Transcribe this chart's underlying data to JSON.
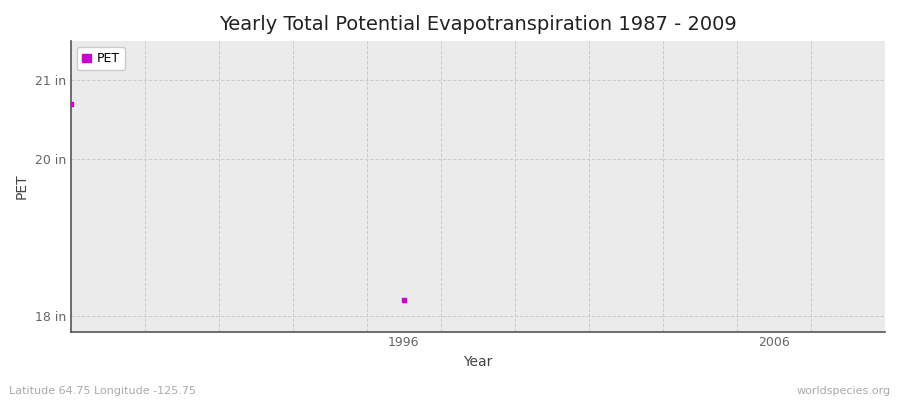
{
  "title": "Yearly Total Potential Evapotranspiration 1987 - 2009",
  "xlabel": "Year",
  "ylabel": "PET",
  "xlim": [
    1987,
    2009
  ],
  "ylim": [
    17.8,
    21.5
  ],
  "yticks": [
    18,
    20,
    21
  ],
  "ytick_labels": [
    "18 in",
    "20 in",
    "21 in"
  ],
  "xticks": [
    1996,
    2006
  ],
  "data_x": [
    1987,
    1996
  ],
  "data_y": [
    20.7,
    18.2
  ],
  "point_color": "#cc00cc",
  "point_size": 8,
  "legend_label": "PET",
  "fig_bg_color": "#ffffff",
  "plot_bg_color": "#ebebeb",
  "grid_color": "#cccccc",
  "spine_color": "#555555",
  "title_fontsize": 14,
  "axis_label_fontsize": 10,
  "tick_fontsize": 9,
  "footer_left": "Latitude 64.75 Longitude -125.75",
  "footer_right": "worldspecies.org",
  "footer_fontsize": 8,
  "footer_color": "#aaaaaa",
  "vgrid_positions": [
    1989,
    1991,
    1993,
    1995,
    1997,
    1999,
    2001,
    2003,
    2005,
    2007,
    2009
  ]
}
